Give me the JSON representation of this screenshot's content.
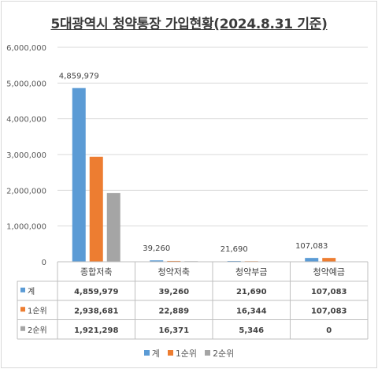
{
  "chart_data": {
    "type": "bar",
    "title": "5대광역시 청약통장 가입현황(2024.8.31 기준)",
    "categories": [
      "종합저축",
      "청약저축",
      "청약부금",
      "청약예금"
    ],
    "series": [
      {
        "name": "계",
        "values": [
          4859979,
          39260,
          21690,
          107083
        ],
        "color": "#5b9bd5"
      },
      {
        "name": "1순위",
        "values": [
          2938681,
          22889,
          16344,
          107083
        ],
        "color": "#ed7d31"
      },
      {
        "name": "2순위",
        "values": [
          1921298,
          16371,
          5346,
          0
        ],
        "color": "#a5a5a5"
      }
    ],
    "ylim": [
      0,
      6000000
    ],
    "yticks": [
      "0",
      "1,000,000",
      "2,000,000",
      "3,000,000",
      "4,000,000",
      "5,000,000",
      "6,000,000"
    ],
    "data_labels": {
      "series": "계",
      "labels": [
        "4,859,979",
        "39,260",
        "21,690",
        "107,083"
      ]
    },
    "table": {
      "rows": [
        {
          "name": "계",
          "cells": [
            "4,859,979",
            "39,260",
            "21,690",
            "107,083"
          ]
        },
        {
          "name": "1순위",
          "cells": [
            "2,938,681",
            "22,889",
            "16,344",
            "107,083"
          ]
        },
        {
          "name": "2순위",
          "cells": [
            "1,921,298",
            "16,371",
            "5,346",
            "0"
          ]
        }
      ]
    },
    "grid": true,
    "legend_position": "bottom"
  }
}
